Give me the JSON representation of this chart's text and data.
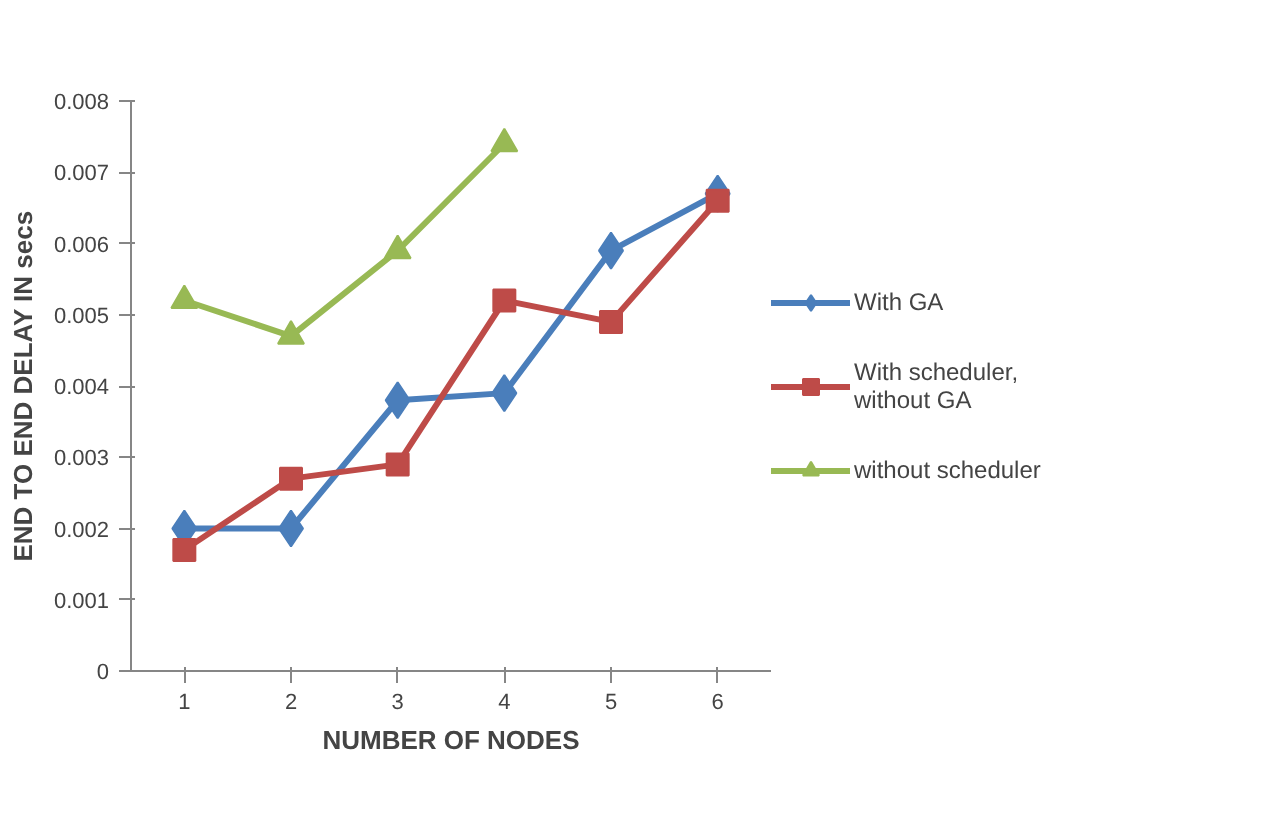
{
  "chart_data": {
    "type": "line",
    "xlabel": "NUMBER OF NODES",
    "ylabel": "END TO END DELAY IN secs",
    "categories": [
      "1",
      "2",
      "3",
      "4",
      "5",
      "6"
    ],
    "series": [
      {
        "name": "With GA",
        "color": "#4a7ebb",
        "marker": "diamond",
        "values": [
          0.002,
          0.002,
          0.0038,
          0.0039,
          0.0059,
          0.0067
        ]
      },
      {
        "name": "With scheduler,\nwithout GA",
        "color": "#be4b48",
        "marker": "square",
        "values": [
          0.0017,
          0.0027,
          0.0029,
          0.0052,
          0.0049,
          0.0066
        ]
      },
      {
        "name": "without scheduler",
        "color": "#98b954",
        "marker": "triangle",
        "values": [
          0.0052,
          0.0047,
          0.0059,
          0.0074,
          null,
          null
        ]
      }
    ],
    "ylim": [
      0,
      0.008
    ],
    "yticks": [
      0,
      0.001,
      0.002,
      0.003,
      0.004,
      0.005,
      0.006,
      0.007,
      0.008
    ],
    "grid": false,
    "legend": "right",
    "line_style": "solid"
  }
}
